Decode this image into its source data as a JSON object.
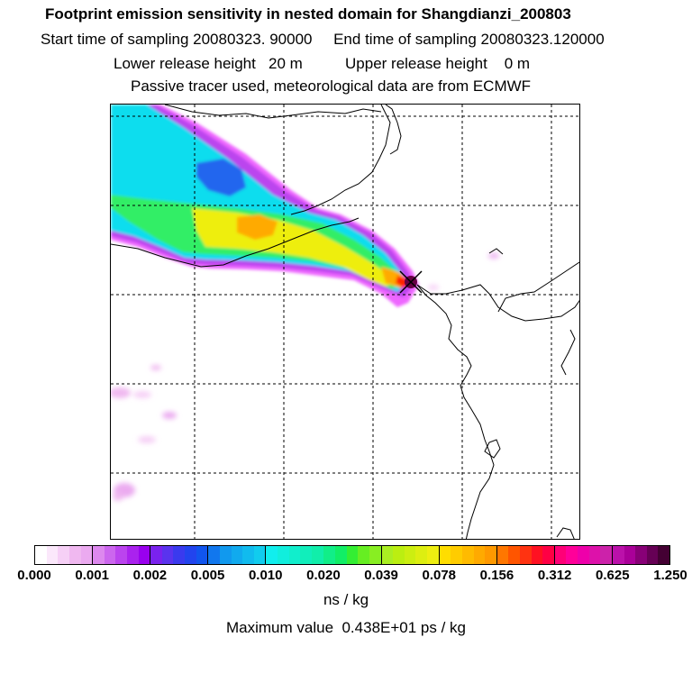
{
  "header": {
    "title": "Footprint emission sensitivity in nested domain for Shangdianzi_200803",
    "sampling_line": "Start time of sampling 20080323. 90000     End time of sampling 20080323.120000",
    "release_line": "Lower release height   20 m          Upper release height    0 m",
    "tracer_line": "Passive tracer used, meteorological data are from ECMWF"
  },
  "colorbar": {
    "tick_labels": [
      "0.000",
      "0.001",
      "0.002",
      "0.005",
      "0.010",
      "0.020",
      "0.039",
      "0.078",
      "0.156",
      "0.312",
      "0.625",
      "1.250"
    ],
    "groups": [
      [
        "#ffffff",
        "#fbe8fb",
        "#f6d0f6",
        "#f0b8f0",
        "#ebaaf0"
      ],
      [
        "#dd88ee",
        "#cc66ee",
        "#bb44ee",
        "#aa22ee",
        "#9900ee"
      ],
      [
        "#7a22ee",
        "#5a33ee",
        "#3a3aee",
        "#2244ee",
        "#1155ee"
      ],
      [
        "#1177ee",
        "#1199ee",
        "#11aaee",
        "#11bbee",
        "#11ccee"
      ],
      [
        "#11eeee",
        "#11eedd",
        "#11eecc",
        "#11eebb",
        "#11eeaa"
      ],
      [
        "#11ee88",
        "#11ee66",
        "#33ee33",
        "#66ee22",
        "#88ee22"
      ],
      [
        "#aaee22",
        "#bbee11",
        "#ccee11",
        "#ddee11",
        "#eeee11"
      ],
      [
        "#ffdd00",
        "#ffcc00",
        "#ffbb00",
        "#ffaa00",
        "#ff9900"
      ],
      [
        "#ff7700",
        "#ff5500",
        "#ff3311",
        "#ff1122",
        "#ff0044"
      ],
      [
        "#ff0077",
        "#ff0099",
        "#ee00aa",
        "#dd11aa",
        "#cc22aa"
      ],
      [
        "#bb11aa",
        "#aa0099",
        "#880077",
        "#660055",
        "#440033"
      ]
    ],
    "units": "ns / kg"
  },
  "footer": {
    "max_value": "Maximum value  0.438E+01 ps / kg"
  },
  "map": {
    "receptor": "Shangdianzi",
    "colors": {
      "low": "#f0b8f0",
      "purple": "#cc44ee",
      "magenta": "#ee66ff",
      "blue": "#2266ee",
      "cyan": "#11ddee",
      "green": "#33ee66",
      "yellow": "#eeee11",
      "orange": "#ffaa00",
      "red": "#ff2200",
      "dark": "#660044"
    }
  }
}
